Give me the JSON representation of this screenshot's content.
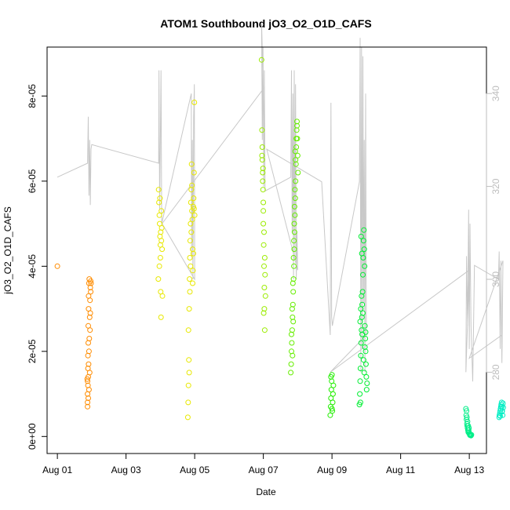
{
  "chart_data": {
    "type": "scatter",
    "title": "ATOM1 Southbound jO3_O2_O1D_CAFS",
    "xlabel": "Date",
    "ylabel": "jO3_O2_O1D_CAFS",
    "x_ticks": [
      "Aug 01",
      "Aug 03",
      "Aug 05",
      "Aug 07",
      "Aug 09",
      "Aug 11",
      "Aug 13"
    ],
    "x_tick_values": [
      0,
      2,
      4,
      6,
      8,
      10,
      12
    ],
    "xlim": [
      -0.3,
      12.5
    ],
    "ylim": [
      -4e-06,
      9.15e-05
    ],
    "y_ticks": [
      "0e+00",
      "2e-05",
      "4e-05",
      "6e-05",
      "8e-05"
    ],
    "y_tick_values": [
      0,
      2e-05,
      4e-05,
      6e-05,
      8e-05
    ],
    "y2_ticks": [
      "280",
      "300",
      "320",
      "340"
    ],
    "y2_tick_values": [
      280,
      300,
      320,
      340
    ],
    "y2lim": [
      262.5,
      350
    ],
    "grid": false,
    "colors": {
      "line": "#c8c8c8",
      "right_axis": "#bdbdbd"
    },
    "series": [
      {
        "color": "#ff8c00",
        "points": [
          [
            0.0,
            4e-05
          ],
          [
            0.88,
            7e-06
          ],
          [
            0.88,
            1e-05
          ],
          [
            0.88,
            1.3e-05
          ],
          [
            0.89,
            1.6e-05
          ],
          [
            0.89,
            1.9e-05
          ],
          [
            0.9,
            2.2e-05
          ],
          [
            0.9,
            2.6e-05
          ],
          [
            0.91,
            3e-05
          ],
          [
            0.91,
            3.3e-05
          ],
          [
            0.92,
            3.6e-05
          ],
          [
            0.93,
            3.7e-05
          ],
          [
            0.88,
            8e-06
          ],
          [
            0.89,
            1.2e-05
          ],
          [
            0.9,
            1.4e-05
          ],
          [
            0.91,
            1.7e-05
          ],
          [
            0.92,
            2e-05
          ],
          [
            0.93,
            2.3e-05
          ],
          [
            0.94,
            2.8e-05
          ],
          [
            0.95,
            3.2e-05
          ],
          [
            0.96,
            3.5e-05
          ],
          [
            0.97,
            3.65e-05
          ],
          [
            0.9,
            9e-06
          ],
          [
            0.92,
            1.1e-05
          ],
          [
            0.94,
            1.5e-05
          ],
          [
            0.95,
            2.5e-05
          ],
          [
            0.96,
            2.9e-05
          ],
          [
            0.97,
            3.4e-05
          ],
          [
            0.98,
            3.6e-05
          ],
          [
            0.87,
            1.35e-05
          ]
        ]
      },
      {
        "color": "#e8e800",
        "points": [
          [
            2.95,
            5.8e-05
          ],
          [
            2.96,
            5.5e-05
          ],
          [
            2.97,
            5.2e-05
          ],
          [
            2.98,
            5e-05
          ],
          [
            2.99,
            4.7e-05
          ],
          [
            3.0,
            4.5e-05
          ],
          [
            3.0,
            4.2e-05
          ],
          [
            3.01,
            3.4e-05
          ],
          [
            3.02,
            2.8e-05
          ],
          [
            3.03,
            5.3e-05
          ],
          [
            3.04,
            4.9e-05
          ],
          [
            3.05,
            4.4e-05
          ],
          [
            3.06,
            3.3e-05
          ],
          [
            2.94,
            3.7e-05
          ],
          [
            2.97,
            4e-05
          ],
          [
            2.99,
            5.6e-05
          ],
          [
            3.01,
            4.8e-05
          ],
          [
            3.03,
            4.6e-05
          ],
          [
            3.8,
            4.5e-06
          ],
          [
            3.81,
            8e-06
          ],
          [
            3.82,
            1.2e-05
          ],
          [
            3.83,
            1.8e-05
          ],
          [
            3.82,
            2.5e-05
          ],
          [
            3.84,
            3e-05
          ],
          [
            3.85,
            3.7e-05
          ],
          [
            3.86,
            4.2e-05
          ],
          [
            3.87,
            4.6e-05
          ],
          [
            3.88,
            5e-05
          ],
          [
            3.89,
            5.5e-05
          ],
          [
            3.9,
            5.8e-05
          ],
          [
            3.91,
            6.4e-05
          ],
          [
            3.92,
            5.3e-05
          ],
          [
            3.93,
            5.1e-05
          ],
          [
            3.94,
            4.4e-05
          ],
          [
            3.95,
            3.9e-05
          ],
          [
            3.96,
            5.4e-05
          ],
          [
            3.97,
            5.6e-05
          ],
          [
            3.98,
            6.2e-05
          ],
          [
            3.99,
            7.85e-05
          ],
          [
            4.0,
            5.2e-05
          ],
          [
            3.84,
            1.5e-05
          ],
          [
            3.86,
            3.4e-05
          ],
          [
            3.88,
            4e-05
          ],
          [
            3.9,
            4.8e-05
          ],
          [
            3.92,
            5.9e-05
          ],
          [
            3.94,
            3.6e-05
          ],
          [
            3.96,
            4.3e-05
          ],
          [
            3.98,
            5.35e-05
          ]
        ]
      },
      {
        "color": "#9bec00",
        "points": [
          [
            5.95,
            8.85e-05
          ],
          [
            5.96,
            7.2e-05
          ],
          [
            5.97,
            6.8e-05
          ],
          [
            5.97,
            6.5e-05
          ],
          [
            5.98,
            6.2e-05
          ],
          [
            5.99,
            5.8e-05
          ],
          [
            6.0,
            5.5e-05
          ],
          [
            6.0,
            5e-05
          ],
          [
            6.01,
            4.5e-05
          ],
          [
            6.02,
            4e-05
          ],
          [
            6.03,
            3.5e-05
          ],
          [
            6.03,
            3e-05
          ],
          [
            6.04,
            2.5e-05
          ],
          [
            5.96,
            6.6e-05
          ],
          [
            5.98,
            6e-05
          ],
          [
            6.0,
            5.3e-05
          ],
          [
            6.02,
            4.8e-05
          ],
          [
            6.04,
            4.2e-05
          ],
          [
            6.06,
            3.3e-05
          ],
          [
            6.01,
            2.9e-05
          ],
          [
            5.99,
            6.3e-05
          ],
          [
            6.05,
            3.8e-05
          ]
        ]
      },
      {
        "color": "#66ee00",
        "points": [
          [
            6.8,
            1.5e-05
          ],
          [
            6.81,
            1.7e-05
          ],
          [
            6.82,
            2e-05
          ],
          [
            6.83,
            2.2e-05
          ],
          [
            6.84,
            2.5e-05
          ],
          [
            6.85,
            2.8e-05
          ],
          [
            6.86,
            3.1e-05
          ],
          [
            6.87,
            3.4e-05
          ],
          [
            6.88,
            3.7e-05
          ],
          [
            6.89,
            4e-05
          ],
          [
            6.9,
            4.4e-05
          ],
          [
            6.91,
            4.8e-05
          ],
          [
            6.92,
            5.2e-05
          ],
          [
            6.93,
            5.6e-05
          ],
          [
            6.94,
            6e-05
          ],
          [
            6.95,
            6.4e-05
          ],
          [
            6.96,
            6.8e-05
          ],
          [
            6.97,
            7.2e-05
          ],
          [
            6.98,
            7.4e-05
          ],
          [
            6.99,
            7e-05
          ],
          [
            7.0,
            6.6e-05
          ],
          [
            7.01,
            6.2e-05
          ],
          [
            6.82,
            2.4e-05
          ],
          [
            6.84,
            3e-05
          ],
          [
            6.86,
            3.6e-05
          ],
          [
            6.88,
            4.2e-05
          ],
          [
            6.9,
            5e-05
          ],
          [
            6.92,
            5.8e-05
          ],
          [
            6.94,
            6.5e-05
          ],
          [
            6.96,
            7e-05
          ],
          [
            6.98,
            7.3e-05
          ],
          [
            6.85,
            1.9e-05
          ],
          [
            6.87,
            2.7e-05
          ],
          [
            6.89,
            4.6e-05
          ],
          [
            6.91,
            5.4e-05
          ],
          [
            6.93,
            6.7e-05
          ]
        ]
      },
      {
        "color": "#22ee00",
        "points": [
          [
            7.95,
            5e-06
          ],
          [
            7.96,
            7e-06
          ],
          [
            7.97,
            9e-06
          ],
          [
            7.98,
            1.1e-05
          ],
          [
            7.99,
            1.3e-05
          ],
          [
            8.0,
            1.45e-05
          ],
          [
            8.01,
            6e-06
          ],
          [
            8.02,
            8e-06
          ],
          [
            8.03,
            1e-05
          ],
          [
            8.04,
            1.2e-05
          ],
          [
            7.97,
            1.4e-05
          ],
          [
            8.0,
            6.5e-06
          ]
        ]
      },
      {
        "color": "#00ee33",
        "points": [
          [
            8.8,
            7.5e-06
          ],
          [
            8.81,
            1e-05
          ],
          [
            8.82,
            1.3e-05
          ],
          [
            8.83,
            1.6e-05
          ],
          [
            8.84,
            1.9e-05
          ],
          [
            8.85,
            2.2e-05
          ],
          [
            8.86,
            2.5e-05
          ],
          [
            8.87,
            2.8e-05
          ],
          [
            8.88,
            3.1e-05
          ],
          [
            8.89,
            3.4e-05
          ],
          [
            8.9,
            3.8e-05
          ],
          [
            8.91,
            4.2e-05
          ],
          [
            8.92,
            4.6e-05
          ],
          [
            8.93,
            4.85e-05
          ],
          [
            8.94,
            4.4e-05
          ],
          [
            8.95,
            4e-05
          ],
          [
            8.96,
            2.6e-05
          ],
          [
            8.97,
            2.3e-05
          ],
          [
            8.98,
            2e-05
          ],
          [
            8.99,
            1.7e-05
          ],
          [
            9.0,
            1.4e-05
          ],
          [
            9.01,
            1.1e-05
          ],
          [
            8.82,
            2.7e-05
          ],
          [
            8.84,
            3e-05
          ],
          [
            8.86,
            3.3e-05
          ],
          [
            8.88,
            2.4e-05
          ],
          [
            8.9,
            2.9e-05
          ],
          [
            8.92,
            1.8e-05
          ],
          [
            8.94,
            1.5e-05
          ],
          [
            8.96,
            2.1e-05
          ],
          [
            8.98,
            2.45e-05
          ],
          [
            8.85,
            4.7e-05
          ],
          [
            8.87,
            4.3e-05
          ],
          [
            8.83,
            8e-06
          ],
          [
            9.02,
            1.25e-05
          ]
        ]
      },
      {
        "color": "#00ee88",
        "points": [
          [
            11.9,
            6.5e-06
          ],
          [
            11.91,
            5e-06
          ],
          [
            11.92,
            4e-06
          ],
          [
            11.93,
            3e-06
          ],
          [
            11.94,
            2.5e-06
          ],
          [
            11.95,
            2e-06
          ],
          [
            11.96,
            1.5e-06
          ],
          [
            11.97,
            1e-06
          ],
          [
            11.98,
            1.5e-06
          ],
          [
            11.99,
            1e-06
          ],
          [
            12.0,
            7e-07
          ],
          [
            12.01,
            5e-07
          ],
          [
            12.02,
            3e-07
          ],
          [
            12.03,
            5e-07
          ],
          [
            12.04,
            3e-07
          ],
          [
            12.05,
            2e-07
          ],
          [
            12.06,
            4e-07
          ],
          [
            11.93,
            4.5e-06
          ],
          [
            11.95,
            3.5e-06
          ],
          [
            11.97,
            2.5e-06
          ],
          [
            11.99,
            2e-06
          ],
          [
            11.92,
            6e-06
          ]
        ]
      },
      {
        "color": "#00eec4",
        "points": [
          [
            12.87,
            4.5e-06
          ],
          [
            12.88,
            5e-06
          ],
          [
            12.89,
            5.5e-06
          ],
          [
            12.9,
            6e-06
          ],
          [
            12.91,
            6.5e-06
          ],
          [
            12.92,
            7e-06
          ],
          [
            12.93,
            7.5e-06
          ],
          [
            12.94,
            8e-06
          ],
          [
            12.95,
            7e-06
          ],
          [
            12.96,
            6e-06
          ],
          [
            12.97,
            5e-06
          ],
          [
            12.98,
            7.8e-06
          ],
          [
            12.99,
            6.8e-06
          ],
          [
            12.9,
            4.8e-06
          ],
          [
            12.95,
            5.8e-06
          ]
        ]
      }
    ],
    "line_series": {
      "points": [
        [
          0.0,
          322
        ],
        [
          0.88,
          325
        ],
        [
          0.9,
          335
        ],
        [
          0.92,
          318
        ],
        [
          0.94,
          330
        ],
        [
          0.96,
          316
        ],
        [
          0.98,
          328
        ],
        [
          1.0,
          329
        ],
        [
          2.95,
          325
        ],
        [
          2.96,
          345
        ],
        [
          2.98,
          315
        ],
        [
          3.0,
          330
        ],
        [
          3.02,
          345
        ],
        [
          3.04,
          312
        ],
        [
          3.9,
          340
        ],
        [
          3.91,
          305
        ],
        [
          3.93,
          330
        ],
        [
          3.95,
          300
        ],
        [
          3.97,
          335
        ],
        [
          3.99,
          342
        ],
        [
          4.0,
          300
        ],
        [
          3.05,
          312
        ],
        [
          6.0,
          341
        ],
        [
          5.95,
          355
        ],
        [
          5.97,
          330
        ],
        [
          5.99,
          350
        ],
        [
          6.01,
          320
        ],
        [
          6.03,
          345
        ],
        [
          6.05,
          319
        ],
        [
          6.8,
          322
        ],
        [
          6.82,
          345
        ],
        [
          6.84,
          310
        ],
        [
          6.86,
          340
        ],
        [
          6.88,
          300
        ],
        [
          6.9,
          345
        ],
        [
          6.92,
          305
        ],
        [
          6.94,
          342
        ],
        [
          6.96,
          300
        ],
        [
          6.98,
          310
        ],
        [
          7.0,
          302
        ],
        [
          6.1,
          328
        ],
        [
          7.7,
          321
        ],
        [
          7.95,
          288
        ],
        [
          7.97,
          338
        ],
        [
          7.99,
          292
        ],
        [
          8.01,
          290
        ],
        [
          8.8,
          321
        ],
        [
          8.82,
          352
        ],
        [
          8.84,
          280
        ],
        [
          8.86,
          350
        ],
        [
          8.88,
          285
        ],
        [
          8.9,
          348
        ],
        [
          8.92,
          295
        ],
        [
          8.94,
          330
        ],
        [
          8.96,
          280
        ],
        [
          8.98,
          340
        ],
        [
          9.0,
          288
        ],
        [
          7.95,
          280
        ],
        [
          12.0,
          302
        ],
        [
          11.9,
          280
        ],
        [
          11.92,
          305
        ],
        [
          11.95,
          290
        ],
        [
          11.98,
          315
        ],
        [
          12.0,
          285
        ],
        [
          12.02,
          312
        ],
        [
          12.05,
          290
        ],
        [
          12.1,
          278
        ],
        [
          12.15,
          303
        ],
        [
          12.85,
          300
        ],
        [
          12.87,
          306
        ],
        [
          12.9,
          285
        ],
        [
          12.92,
          304
        ],
        [
          12.95,
          282
        ],
        [
          12.98,
          304
        ],
        [
          12.0,
          283
        ],
        [
          12.95,
          288
        ]
      ]
    }
  }
}
